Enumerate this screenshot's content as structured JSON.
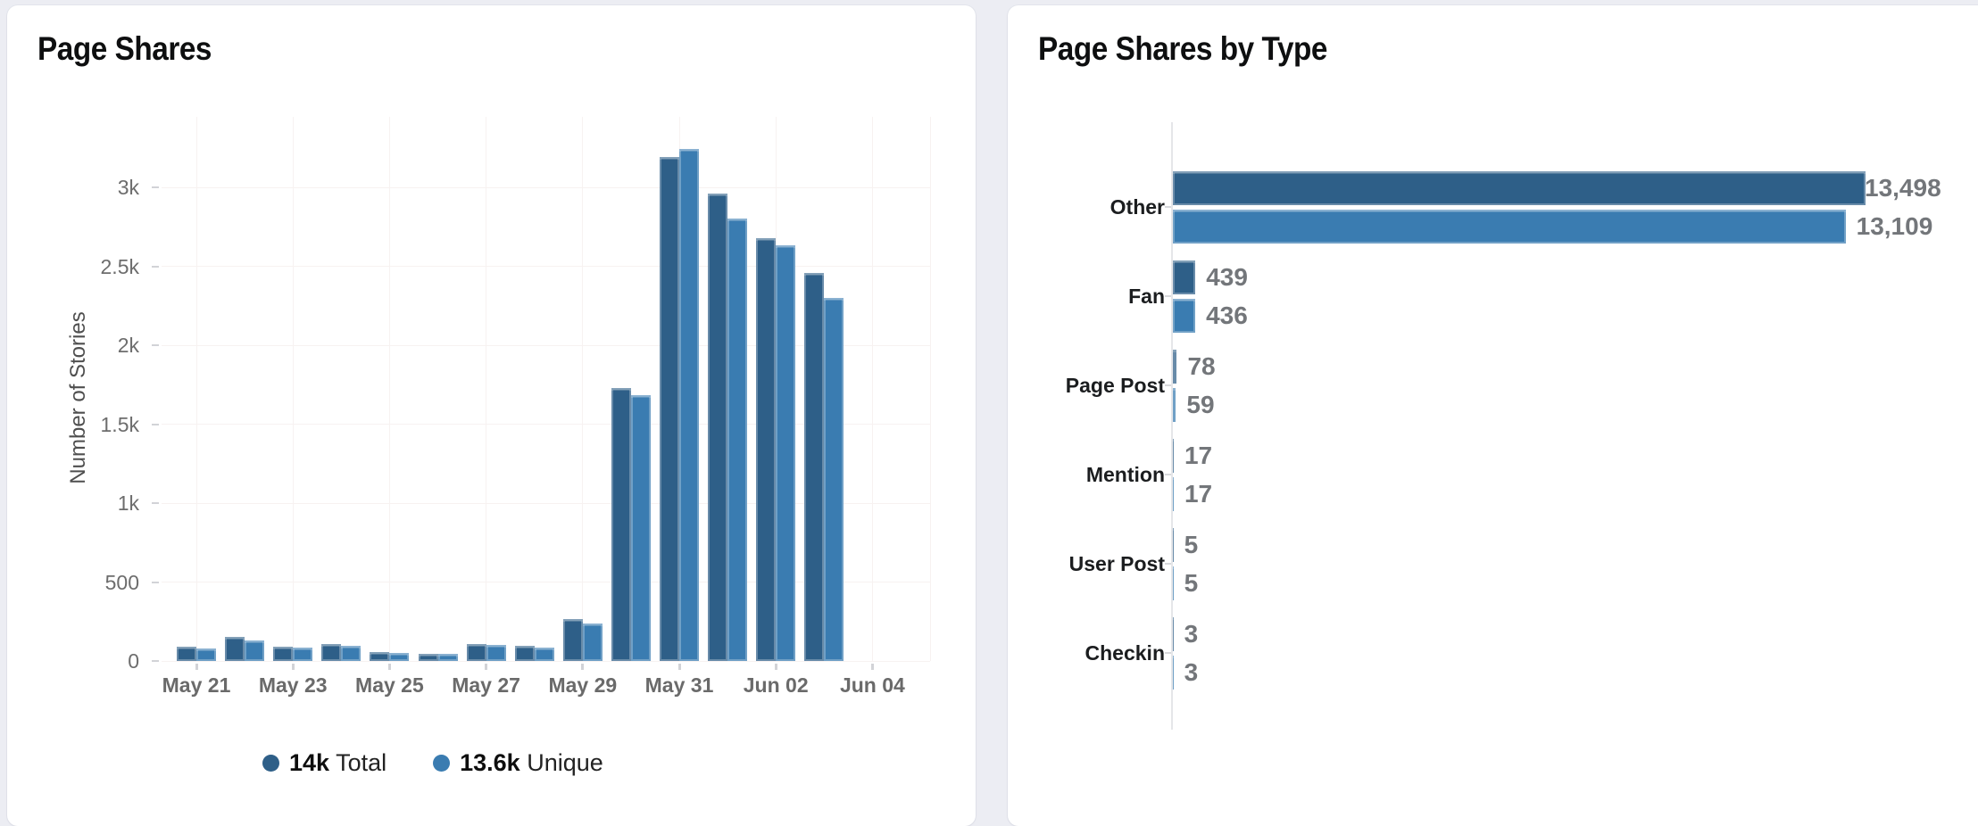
{
  "page": {
    "background": "#ecedf3"
  },
  "colors": {
    "total": "#2e5f88",
    "unique": "#3a7cb1",
    "gridline": "#f7f2f1",
    "axis_line": "#e5e6e9",
    "tick": "#d2d3d7",
    "value_label": "#73767a"
  },
  "left_panel": {
    "title": "Page Shares",
    "ylabel": "Number of Stories",
    "legend": [
      {
        "value": "14k",
        "label": "Total"
      },
      {
        "value": "13.6k",
        "label": "Unique"
      }
    ]
  },
  "right_panel": {
    "title": "Page Shares by Type"
  },
  "chart_data": [
    {
      "type": "bar",
      "title": "Page Shares",
      "xlabel": "",
      "ylabel": "Number of Stories",
      "grid": true,
      "legend_position": "bottom",
      "categories": [
        "May 21",
        "May 22",
        "May 23",
        "May 24",
        "May 25",
        "May 26",
        "May 27",
        "May 28",
        "May 29",
        "May 30",
        "May 31",
        "Jun 01",
        "Jun 02",
        "Jun 03"
      ],
      "series": [
        {
          "name": "Total",
          "legend_value": "14k",
          "color": "#2e5f88",
          "values": [
            90,
            150,
            90,
            105,
            55,
            45,
            110,
            95,
            265,
            1730,
            3190,
            2960,
            2680,
            2455
          ]
        },
        {
          "name": "Unique",
          "legend_value": "13.6k",
          "color": "#3a7cb1",
          "values": [
            80,
            130,
            85,
            95,
            50,
            45,
            100,
            85,
            235,
            1685,
            3245,
            2805,
            2635,
            2300
          ]
        }
      ],
      "ylim": [
        0,
        3450
      ],
      "yticks": [
        {
          "v": 0,
          "label": "0"
        },
        {
          "v": 500,
          "label": "500"
        },
        {
          "v": 1000,
          "label": "1k"
        },
        {
          "v": 1500,
          "label": "1.5k"
        },
        {
          "v": 2000,
          "label": "2k"
        },
        {
          "v": 2500,
          "label": "2.5k"
        },
        {
          "v": 3000,
          "label": "3k"
        }
      ],
      "xticks": [
        {
          "i": 0,
          "label": "May 21"
        },
        {
          "i": 2,
          "label": "May 23"
        },
        {
          "i": 4,
          "label": "May 25"
        },
        {
          "i": 6,
          "label": "May 27"
        },
        {
          "i": 8,
          "label": "May 29"
        },
        {
          "i": 10,
          "label": "May 31"
        },
        {
          "i": 12,
          "label": "Jun 02"
        },
        {
          "i": 14,
          "label": "Jun 04"
        }
      ]
    },
    {
      "type": "bar",
      "orientation": "horizontal",
      "title": "Page Shares by Type",
      "grid": false,
      "xlim": [
        0,
        14000
      ],
      "categories": [
        "Other",
        "Fan",
        "Page Post",
        "Mention",
        "User Post",
        "Checkin"
      ],
      "series": [
        {
          "name": "Total",
          "color": "#2e5f88",
          "values": [
            13498,
            439,
            78,
            17,
            5,
            3
          ],
          "value_labels": [
            "13,498",
            "439",
            "78",
            "17",
            "5",
            "3"
          ]
        },
        {
          "name": "Unique",
          "color": "#3a7cb1",
          "values": [
            13109,
            436,
            59,
            17,
            5,
            3
          ],
          "value_labels": [
            "13,109",
            "436",
            "59",
            "17",
            "5",
            "3"
          ]
        }
      ]
    }
  ]
}
